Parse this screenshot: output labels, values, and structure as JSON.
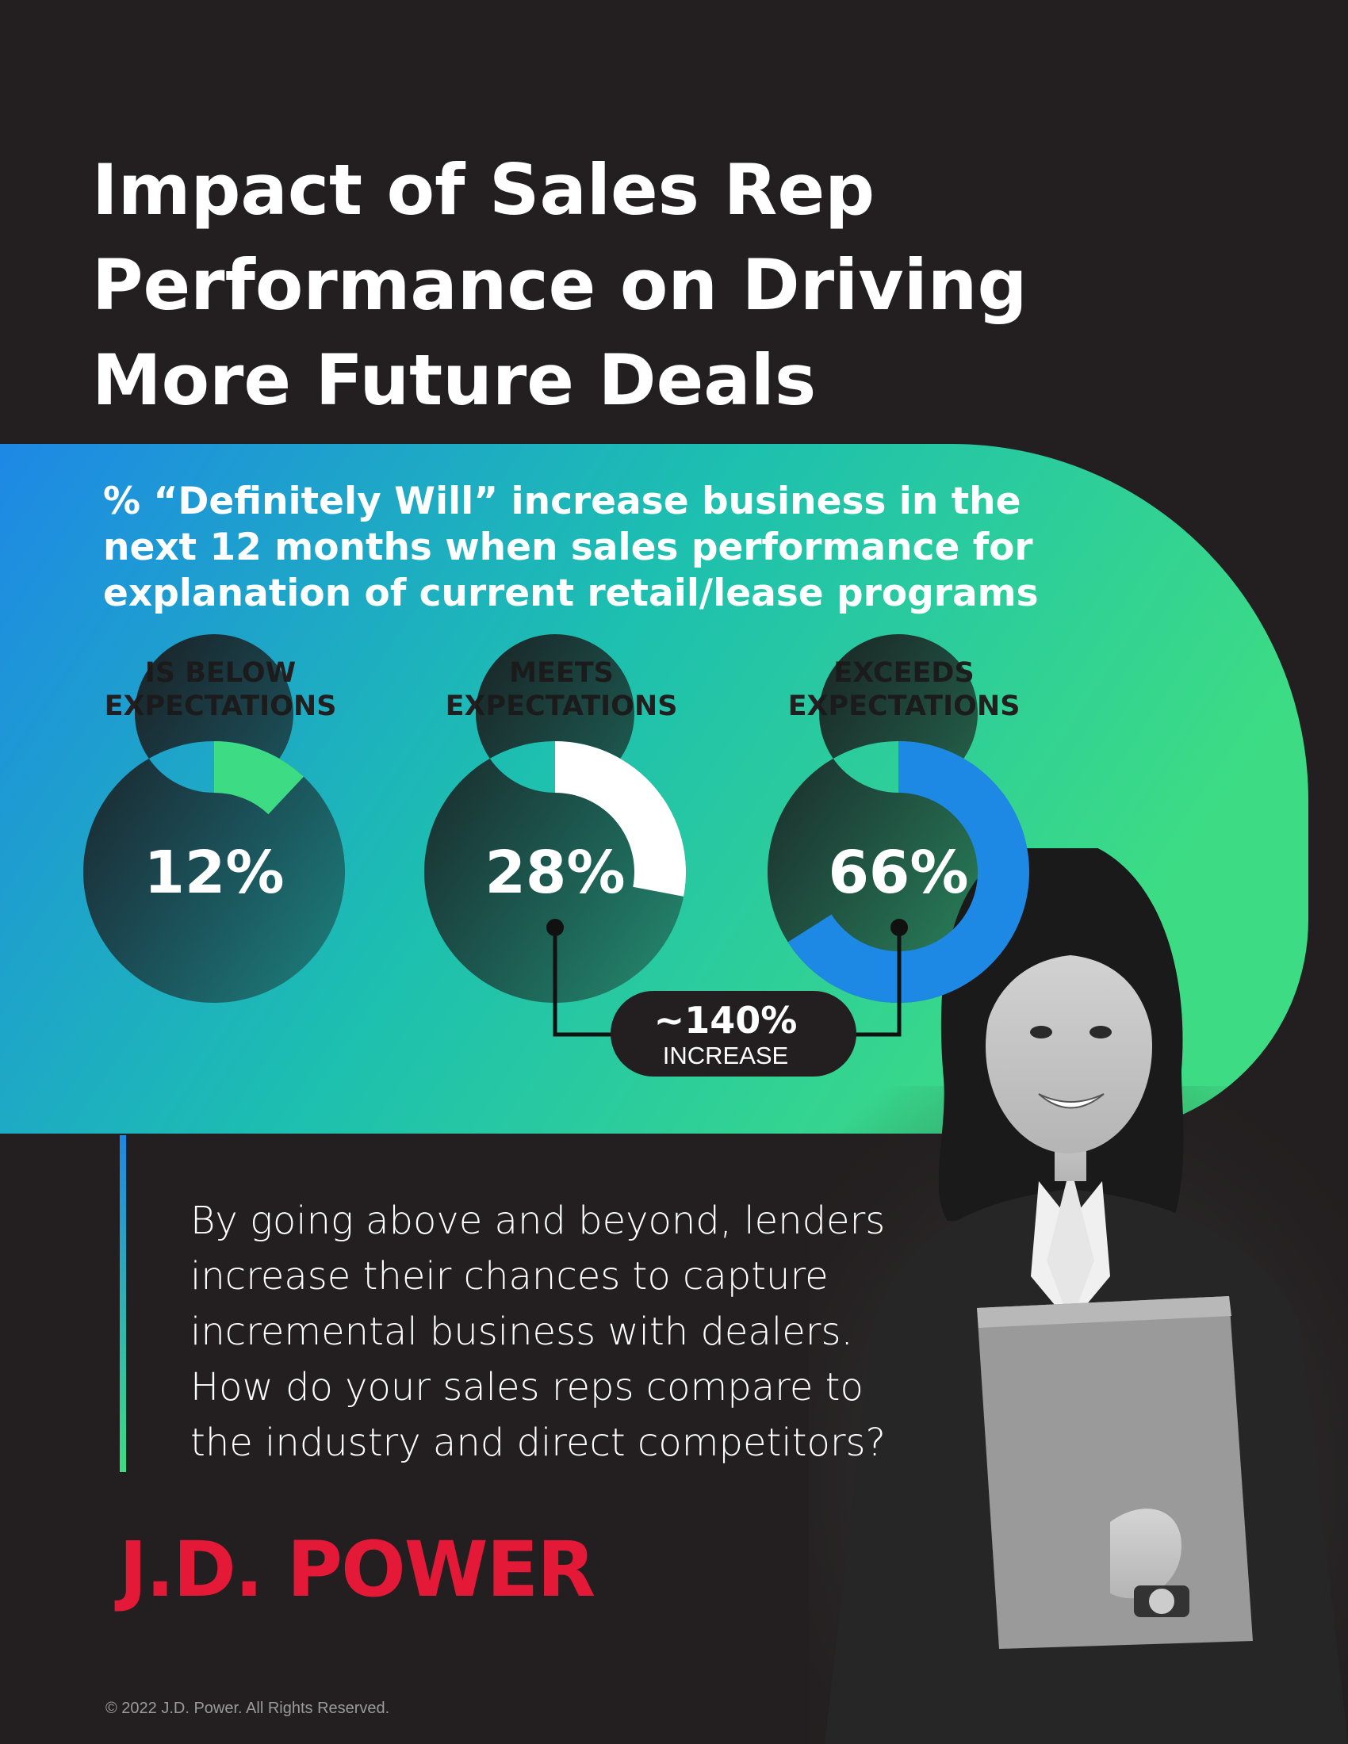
{
  "title_lines": [
    "Impact of Sales Rep",
    "Performance on Driving",
    "More Future Deals"
  ],
  "chart_data": {
    "type": "donut",
    "subtitle_lines": [
      "% “Definitely Will” increase business in the",
      "next 12 months when sales performance for",
      "explanation of current retail/lease programs"
    ],
    "categories": [
      {
        "label_lines": [
          "IS BELOW",
          "EXPECTATIONS"
        ],
        "value": 12,
        "display": "12%",
        "color": "#3ddc84"
      },
      {
        "label_lines": [
          "MEETS",
          "EXPECTATIONS"
        ],
        "value": 28,
        "display": "28%",
        "color": "#ffffff"
      },
      {
        "label_lines": [
          "EXCEEDS",
          "EXPECTATIONS"
        ],
        "value": 66,
        "display": "66%",
        "color": "#1e88e5"
      }
    ],
    "max": 100,
    "annotation": {
      "value": "~140%",
      "label": "INCREASE",
      "from_category": "MEETS EXPECTATIONS",
      "to_category": "EXCEEDS EXPECTATIONS"
    }
  },
  "body_lines": [
    "By going above and beyond, lenders",
    "increase their chances to capture",
    "incremental business with dealers.",
    "How do your sales reps compare to",
    "the industry and direct competitors?"
  ],
  "logo_text": "J.D. POWER",
  "copyright": "© 2022 J.D. Power. All Rights Reserved.",
  "colors": {
    "background": "#231f20",
    "band_start": "#1e88e5",
    "band_end": "#3ddc84",
    "brand_red": "#e31937"
  }
}
